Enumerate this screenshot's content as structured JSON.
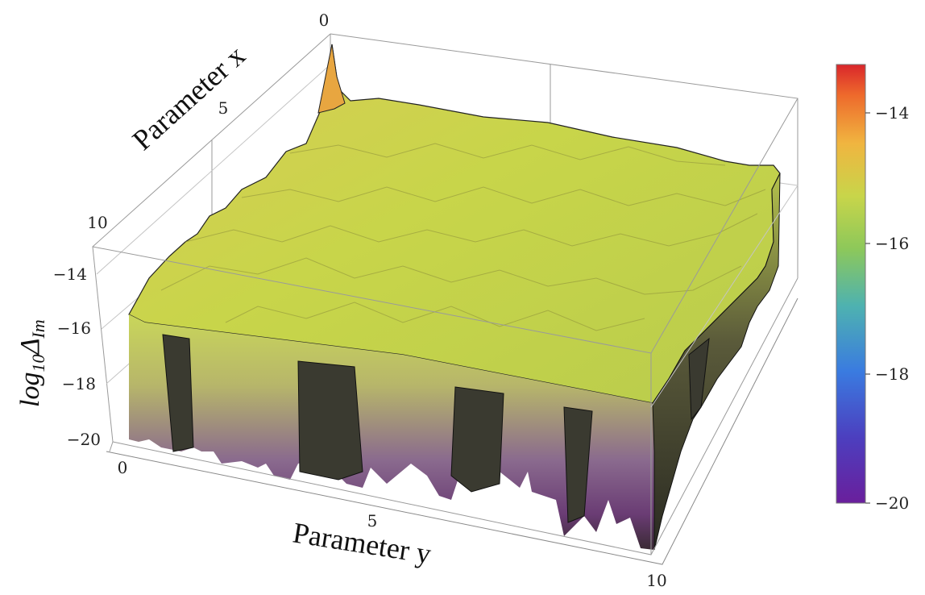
{
  "chart_data": {
    "type": "surface3d",
    "title": "",
    "x_axis": {
      "label": "Parameter x",
      "range": [
        0,
        10
      ],
      "ticks": [
        "0",
        "5",
        "10"
      ]
    },
    "y_axis": {
      "label": "Parameter y",
      "range": [
        0,
        10
      ],
      "ticks": [
        "0",
        "5",
        "10"
      ]
    },
    "z_axis": {
      "label_main": "log",
      "label_sub": "10",
      "label_sym": "Δ",
      "label_sym_sub": "Im",
      "range": [
        -20,
        -13
      ],
      "ticks": [
        "-14",
        "-16",
        "-18",
        "-20"
      ]
    },
    "colorbar": {
      "range": [
        -20,
        -13
      ],
      "ticks": [
        "-14",
        "-16",
        "-18",
        "-20"
      ],
      "colors": [
        "#6a1f9c",
        "#4c3fbf",
        "#3a7be0",
        "#4eb2b0",
        "#8dc85a",
        "#c8d54a",
        "#f0b540",
        "#ee6a2c",
        "#d9262b"
      ]
    },
    "surface_summary": {
      "typical_level": -15.5,
      "peak_near_origin": -13.1,
      "deep_dropouts_to": -20
    }
  }
}
